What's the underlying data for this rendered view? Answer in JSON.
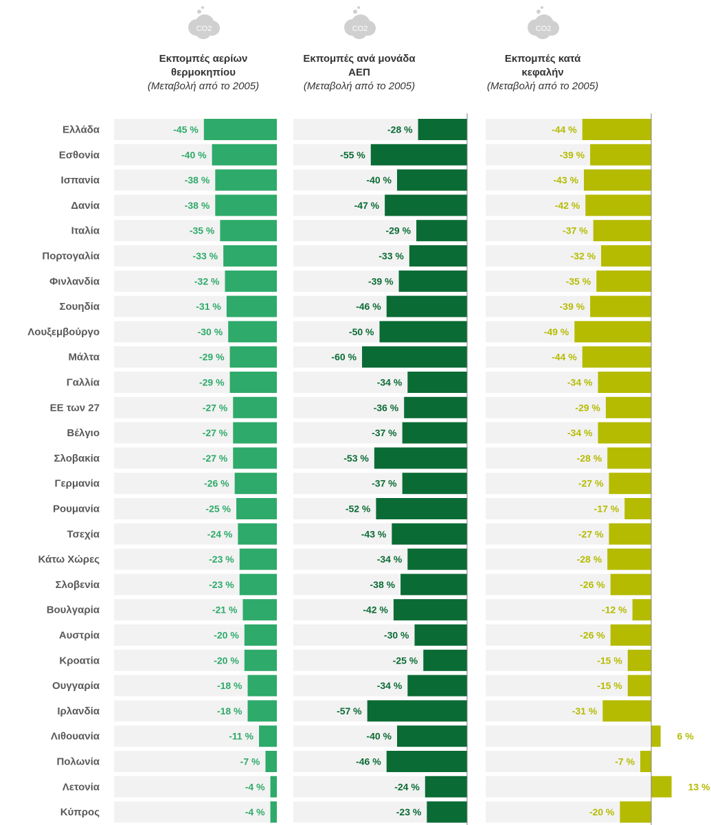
{
  "chart_data": {
    "type": "bar",
    "categories": [
      "Ελλάδα",
      "Εσθονία",
      "Ισπανία",
      "Δανία",
      "Ιταλία",
      "Πορτογαλία",
      "Φινλανδία",
      "Σουηδία",
      "Λουξεμβούργο",
      "Μάλτα",
      "Γαλλία",
      "ΕΕ των 27",
      "Βέλγιο",
      "Σλοβακία",
      "Γερμανία",
      "Ρουμανία",
      "Τσεχία",
      "Κάτω Χώρες",
      "Σλοβενία",
      "Βουλγαρία",
      "Αυστρία",
      "Κροατία",
      "Ουγγαρία",
      "Ιρλανδία",
      "Λιθουανία",
      "Πολωνία",
      "Λετονία",
      "Κύπρος"
    ],
    "value_suffix": " %",
    "series": [
      {
        "name_lines": [
          "Εκπομπές αερίων",
          "θερμοκηπίου"
        ],
        "note": "(Μεταβολή από το 2005)",
        "icon": "co2-cloud-icon",
        "color": "#2eaa6a",
        "values": [
          -45,
          -40,
          -38,
          -38,
          -35,
          -33,
          -32,
          -31,
          -30,
          -29,
          -29,
          -27,
          -27,
          -27,
          -26,
          -25,
          -24,
          -23,
          -23,
          -21,
          -20,
          -20,
          -18,
          -18,
          -11,
          -7,
          -4,
          -4
        ]
      },
      {
        "name_lines": [
          "Εκπομπές ανά μονάδα",
          "ΑΕΠ"
        ],
        "note": "(Μεταβολή από το 2005)",
        "icon": "co2-cloud-icon",
        "color": "#0b6b35",
        "values": [
          -28,
          -55,
          -40,
          -47,
          -29,
          -33,
          -39,
          -46,
          -50,
          -60,
          -34,
          -36,
          -37,
          -53,
          -37,
          -52,
          -43,
          -34,
          -38,
          -42,
          -30,
          -25,
          -34,
          -57,
          -40,
          -46,
          -24,
          -23
        ]
      },
      {
        "name_lines": [
          "Εκπομπές κατά",
          "κεφαλήν"
        ],
        "note": "(Μεταβολή από το 2005)",
        "icon": "co2-cloud-icon",
        "color": "#b5bb00",
        "values": [
          -44,
          -39,
          -43,
          -42,
          -37,
          -32,
          -35,
          -39,
          -49,
          -44,
          -34,
          -29,
          -34,
          -28,
          -27,
          -17,
          -27,
          -28,
          -26,
          -12,
          -26,
          -15,
          -15,
          -31,
          6,
          -7,
          13,
          -20
        ]
      }
    ],
    "icon_label": "CO2",
    "colors": {
      "track": "#f2f2f2",
      "label": "#595959",
      "axis": "#7f7f7f"
    }
  }
}
